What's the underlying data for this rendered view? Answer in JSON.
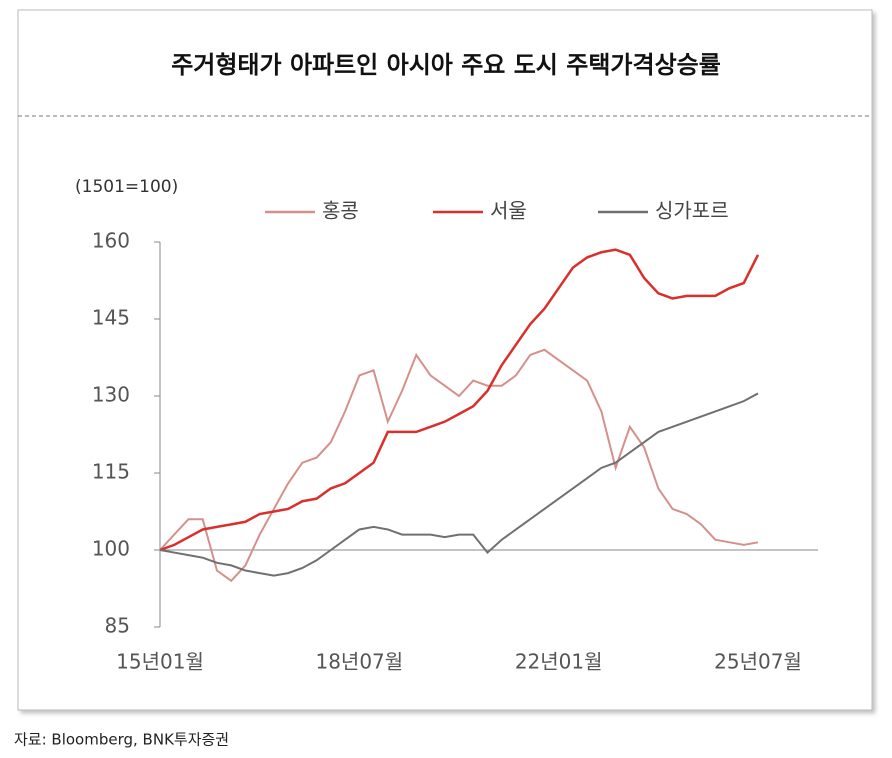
{
  "chart_data": {
    "type": "line",
    "title": "주거형태가 아파트인 아시아 주요 도시 주택가격상승률",
    "unit_label": "(1501=100)",
    "source": "자료: Bloomberg, BNK투자증권",
    "categories": [
      "15년01월",
      null,
      null,
      null,
      null,
      null,
      null,
      null,
      null,
      null,
      null,
      null,
      null,
      null,
      "18년07월",
      null,
      null,
      null,
      null,
      null,
      null,
      null,
      null,
      null,
      null,
      null,
      null,
      null,
      "22년01월",
      null,
      null,
      null,
      null,
      null,
      null,
      null,
      null,
      null,
      null,
      null,
      null,
      null,
      "25년07월"
    ],
    "series": [
      {
        "name": "홍콩",
        "color": "#d4908a",
        "values": [
          100,
          103,
          106,
          106,
          96,
          94,
          97,
          103,
          108,
          113,
          117,
          118,
          121,
          127,
          134,
          135,
          125,
          131,
          138,
          134,
          132,
          130,
          133,
          132,
          132,
          134,
          138,
          139,
          137,
          135,
          133,
          127,
          116,
          124,
          120,
          112,
          108,
          107,
          105,
          102,
          101.5,
          101,
          101.5
        ]
      },
      {
        "name": "서울",
        "color": "#d9302c",
        "values": [
          100,
          101,
          102.5,
          104,
          104.5,
          105,
          105.5,
          107,
          107.5,
          108,
          109.5,
          110,
          112,
          113,
          115,
          117,
          123,
          123,
          123,
          124,
          125,
          126.5,
          128,
          131,
          136,
          140,
          144,
          147,
          151,
          155,
          157,
          158,
          158.5,
          157.5,
          153,
          150,
          149,
          149.5,
          149.5,
          149.5,
          151,
          152,
          157.5
        ]
      },
      {
        "name": "싱가포르",
        "color": "#707070",
        "values": [
          100,
          99.5,
          99,
          98.5,
          97.5,
          97,
          96,
          95.5,
          95,
          95.5,
          96.5,
          98,
          100,
          102,
          104,
          104.5,
          104,
          103,
          103,
          103,
          102.5,
          103,
          103,
          99.5,
          102,
          104,
          106,
          108,
          110,
          112,
          114,
          116,
          117,
          119,
          121,
          123,
          124,
          125,
          126,
          127,
          128,
          129,
          130.5
        ]
      }
    ],
    "ylim": [
      85,
      160
    ],
    "yticks": [
      85,
      100,
      115,
      130,
      145,
      160
    ]
  }
}
